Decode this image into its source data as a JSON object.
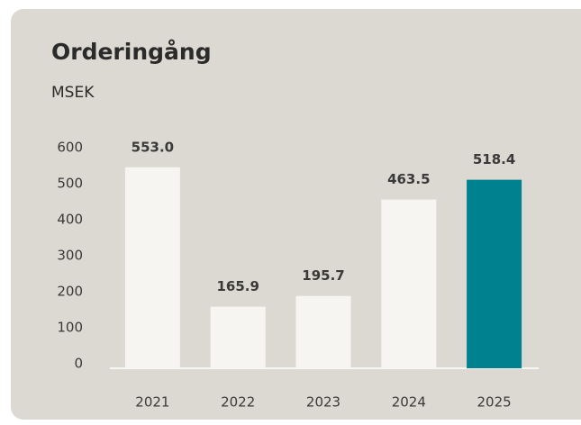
{
  "chart_data": {
    "type": "bar",
    "title": "Orderingång",
    "subtitle": "MSEK",
    "categories": [
      "2021",
      "2022",
      "2023",
      "2024",
      "2025"
    ],
    "values": [
      553.0,
      165.9,
      195.7,
      463.5,
      518.4
    ],
    "value_labels": [
      "553.0",
      "165.9",
      "195.7",
      "463.5",
      "518.4"
    ],
    "colors": [
      "#f7f5f2",
      "#f7f5f2",
      "#f7f5f2",
      "#f7f5f2",
      "#00818f"
    ],
    "ylim": [
      0,
      600
    ],
    "yticks": [
      0,
      100,
      200,
      300,
      400,
      500,
      600
    ],
    "grid": false
  }
}
